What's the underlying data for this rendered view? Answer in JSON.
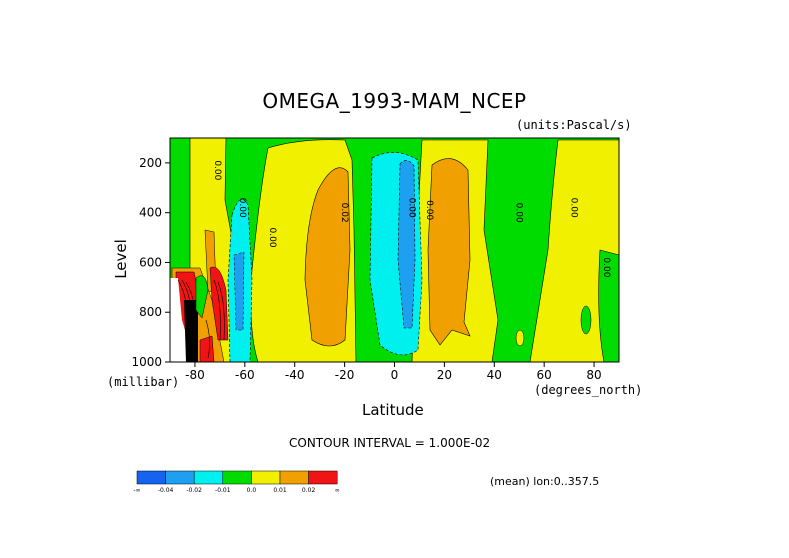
{
  "chart_data": {
    "type": "heatmap",
    "title": "OMEGA_1993-MAM_NCEP",
    "units": "(units:Pascal/s)",
    "xlabel": "Latitude",
    "x_units": "(degrees_north)",
    "ylabel": "Level",
    "y_units": "(millibar)",
    "xlim": [
      -90,
      90
    ],
    "ylim": [
      1000,
      100
    ],
    "x_ticks": [
      -80,
      -60,
      -40,
      -20,
      0,
      20,
      40,
      60,
      80
    ],
    "y_ticks": [
      200,
      400,
      600,
      800,
      1000
    ],
    "contour_interval_text": "CONTOUR INTERVAL = 1.000E-02",
    "contour_labels": [
      "0.00",
      "0.00",
      "0.00",
      "0.02",
      "0.00",
      "0.00",
      "0.00",
      "0.00",
      "0.00"
    ],
    "mean_text": "(mean) lon:0..357.5",
    "colorbar": {
      "labels": [
        "-∞",
        "-0.04",
        "-0.02",
        "-0.01",
        "0.0",
        "0.01",
        "0.02",
        "∞"
      ],
      "colors": [
        "#1464f0",
        "#1ea0f0",
        "#00f0f0",
        "#00dc00",
        "#f0f000",
        "#f0a000",
        "#f01414"
      ]
    },
    "regions": [
      {
        "name": "far-pole-yellow-band",
        "value_class": "0.0..0.01",
        "lat": [
          -85,
          -78
        ],
        "level": [
          100,
          1000
        ]
      },
      {
        "name": "polar-red-cells",
        "value_class": ">0.02",
        "lat": [
          -90,
          -70
        ],
        "level": [
          600,
          1000
        ]
      },
      {
        "name": "southern-cyan-column",
        "value_class": "-0.02..-0.01",
        "lat": [
          -72,
          -60
        ],
        "level": [
          320,
          1000
        ]
      },
      {
        "name": "southern-subtropical-orange",
        "value_class": "0.01..0.02",
        "lat": [
          -40,
          -19
        ],
        "level": [
          200,
          940
        ]
      },
      {
        "name": "equatorial-cyan-column",
        "value_class": "-0.02..-0.01",
        "lat": [
          -5,
          14
        ],
        "level": [
          150,
          920
        ]
      },
      {
        "name": "equatorial-blue-core",
        "value_class": "-0.04..-0.02",
        "lat": [
          2,
          9
        ],
        "level": [
          150,
          870
        ]
      },
      {
        "name": "northern-subtropical-orange",
        "value_class": "0.01..0.02",
        "lat": [
          15,
          34
        ],
        "level": [
          160,
          920
        ]
      },
      {
        "name": "mid-latitude-green",
        "value_class": "-0.01..0.0",
        "lat": [
          36,
          62
        ],
        "level": [
          100,
          1000
        ]
      }
    ]
  }
}
